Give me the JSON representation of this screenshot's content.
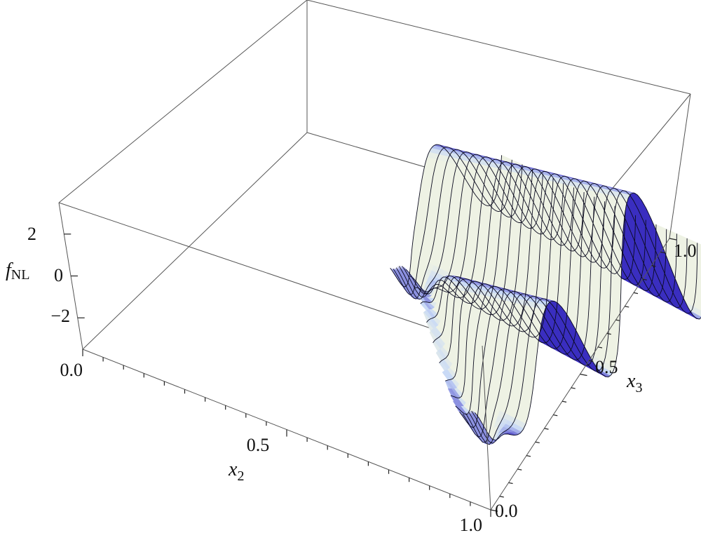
{
  "chart_data": {
    "type": "surface3d",
    "title": "",
    "z_label": {
      "main": "f",
      "sub": "NL"
    },
    "x_label": {
      "main": "x",
      "sub": "2"
    },
    "y_label": {
      "main": "x",
      "sub": "3"
    },
    "x_range": [
      0.0,
      1.0
    ],
    "y_range": [
      0.0,
      1.0
    ],
    "z_range": [
      -3.5,
      3.5
    ],
    "x_ticks": [
      "0.0",
      "0.5",
      "1.0"
    ],
    "y_ticks": [
      "0.0",
      "0.5",
      "1.0"
    ],
    "z_ticks": [
      "2",
      "0",
      "−2"
    ],
    "z_tick_values": [
      2,
      0,
      -2
    ],
    "surface_description": "oscillatory ridges in f_NL along x3, nonzero where x2 + x3 >= 1",
    "colors": {
      "low": "#3a2ec0",
      "mid": "#c6d8f7",
      "high": "#eef2e4",
      "box": "#555555",
      "mesh": "#0a0a1e"
    }
  }
}
